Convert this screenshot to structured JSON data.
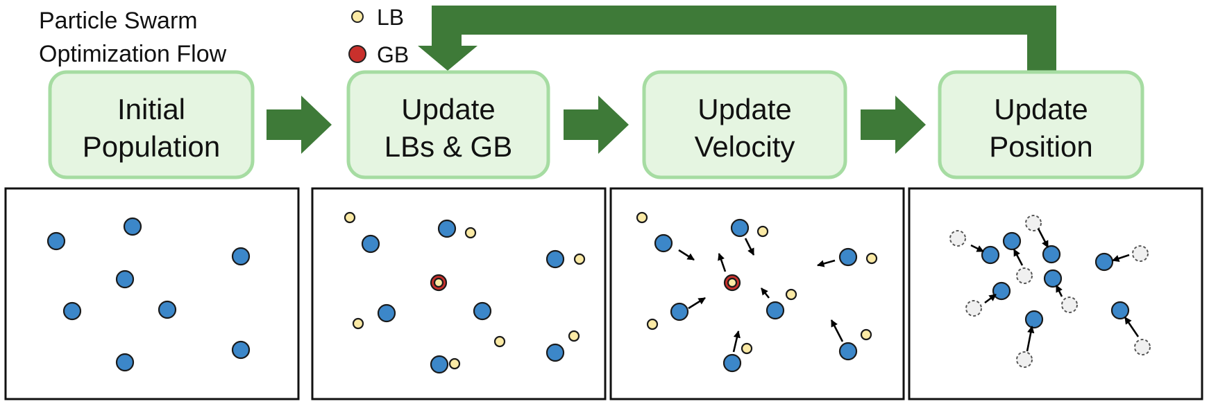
{
  "title": {
    "line1": "Particle Swarm",
    "line2": "Optimization Flow"
  },
  "legend": [
    {
      "key": "lb",
      "label": "LB",
      "color": "#fbeaa5"
    },
    {
      "key": "gb",
      "label": "GB",
      "color": "#c9302c"
    }
  ],
  "steps": [
    {
      "key": "initial",
      "line1": "Initial",
      "line2": "Population"
    },
    {
      "key": "update-lb-gb",
      "line1": "Update",
      "line2": "LBs & GB"
    },
    {
      "key": "update-velocity",
      "line1": "Update",
      "line2": "Velocity"
    },
    {
      "key": "update-position",
      "line1": "Update",
      "line2": "Position"
    }
  ],
  "colors": {
    "arrow": "#3e7a38",
    "box_fill": "#e5f5e1",
    "box_border": "#a6dca2",
    "particle": "#3c87c9",
    "local_best": "#fbeaa5",
    "global_best": "#c9302c",
    "ghost": "#f0f0f0"
  }
}
